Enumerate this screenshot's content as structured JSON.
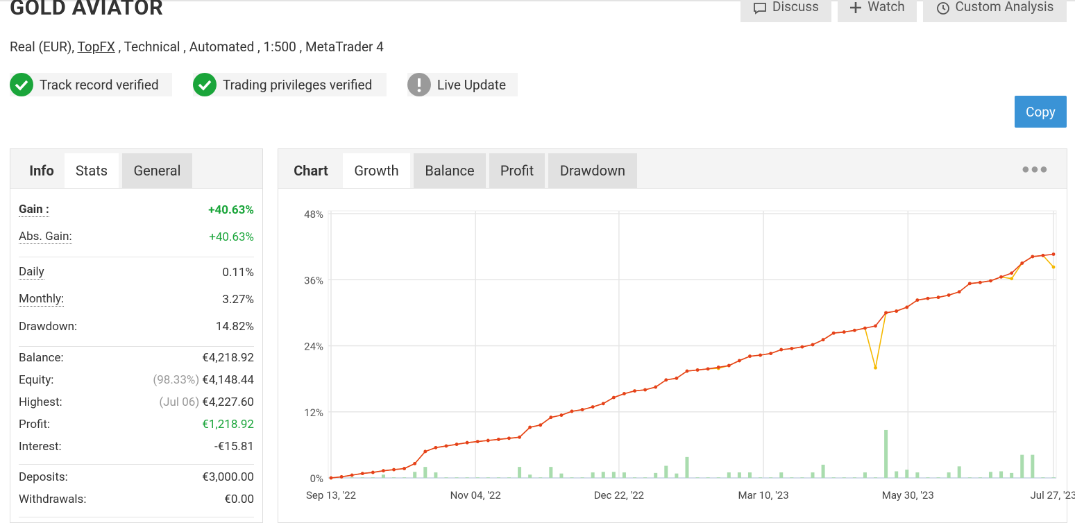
{
  "header": {
    "title": "GOLD AVIATOR",
    "account": "Real (EUR), ",
    "broker": "TopFX",
    "details": " , Technical , Automated , 1:500 , MetaTrader 4"
  },
  "buttons": [
    "Discuss",
    "Watch",
    "Custom Analysis"
  ],
  "badges": [
    "Track record verified",
    "Trading privileges verified",
    "Live Update"
  ],
  "copy": "Copy",
  "side_tabs": [
    "Info",
    "Stats",
    "General"
  ],
  "stats": [
    [
      {
        "label": "Gain :",
        "value": "+40.63%",
        "color": "#1aa53a"
      },
      {
        "label": "Abs. Gain:",
        "value": "+40.63%",
        "color": "#1aa53a"
      }
    ],
    [
      {
        "label": "Daily",
        "value": "0.11%"
      },
      {
        "label": "Monthly:",
        "value": "3.27%"
      },
      {
        "label": "Drawdown:",
        "value": "14.82%"
      }
    ],
    [
      {
        "label": "Balance:",
        "value": "€4,218.92"
      },
      {
        "label": "Equity:",
        "note": "(98.33%)",
        "value": "€4,148.44"
      },
      {
        "label": "Highest:",
        "note": "(Jul 06)",
        "value": "€4,227.60"
      },
      {
        "label": "Profit:",
        "value": "€1,218.92",
        "color": "#1aa53a"
      },
      {
        "label": "Interest:",
        "value": "-€15.81"
      }
    ],
    [
      {
        "label": "Deposits:",
        "value": "€3,000.00"
      },
      {
        "label": "Withdrawals:",
        "value": "€0.00"
      }
    ]
  ],
  "chart_tabs": [
    "Chart",
    "Growth",
    "Balance",
    "Profit",
    "Drawdown"
  ],
  "chart_data": {
    "type": "line",
    "categories": [
      null,
      null,
      null,
      null,
      null,
      null,
      null,
      null,
      null,
      null,
      null,
      null,
      null,
      null,
      null,
      null,
      null,
      null,
      null,
      null,
      null,
      null,
      null,
      null,
      null,
      null,
      null,
      null,
      null,
      null,
      null,
      null,
      null,
      null,
      null,
      null,
      null,
      null,
      null,
      null,
      null,
      null,
      null,
      null,
      null,
      null,
      null,
      null,
      null,
      null,
      null,
      null,
      null,
      null,
      null,
      null,
      null,
      null,
      null,
      null,
      null,
      null,
      null,
      null,
      null,
      null,
      null,
      null,
      null,
      null
    ],
    "xlim": [
      0,
      69
    ],
    "xticks": [
      {
        "value": 0,
        "label": "Sep 13, '22"
      },
      {
        "value": 13.8,
        "label": "Nov 04, '22"
      },
      {
        "value": 27.5,
        "label": "Dec 22, '22"
      },
      {
        "value": 41.3,
        "label": "Mar 10, '23"
      },
      {
        "value": 55.1,
        "label": "May 30, '23"
      },
      {
        "value": 69,
        "label": "Jul 27, '23"
      }
    ],
    "ylim": [
      0,
      48
    ],
    "yticks": [
      {
        "value": 0,
        "label": "0%"
      },
      {
        "value": 12,
        "label": "12%"
      },
      {
        "value": 24,
        "label": "24%"
      },
      {
        "value": 36,
        "label": "36%"
      },
      {
        "value": 48,
        "label": "48%"
      }
    ],
    "grid": true,
    "series": [
      {
        "type": "bar",
        "color": "#a9dcae",
        "values": [
          0.1,
          0.1,
          0.1,
          0.1,
          0.1,
          0.6,
          0.1,
          0.1,
          1.1,
          2.0,
          1.0,
          0.1,
          0.1,
          0.1,
          0.1,
          0.1,
          0.1,
          0.1,
          2.0,
          0.6,
          0.1,
          2.0,
          0.8,
          0.1,
          0.1,
          1.0,
          1.1,
          1.1,
          1.0,
          0.1,
          0.1,
          0.9,
          2.2,
          0.8,
          3.8,
          0.1,
          0.1,
          0.1,
          1.0,
          1.0,
          1.0,
          0.1,
          0.1,
          1.0,
          0.1,
          0.1,
          1.0,
          2.4,
          0.1,
          0.1,
          0.1,
          1.0,
          0.1,
          8.7,
          1.2,
          1.5,
          1.0,
          0.1,
          0.1,
          1.0,
          2.1,
          0.1,
          0.1,
          1.1,
          1.2,
          0.9,
          4.2,
          4.2,
          0.1,
          0.1
        ]
      },
      {
        "type": "line",
        "color": "#f5b800",
        "values": [
          0,
          0.2,
          0.5,
          0.8,
          1.0,
          1.3,
          1.5,
          1.7,
          2.6,
          4.8,
          5.5,
          5.8,
          6.1,
          6.4,
          6.6,
          6.8,
          7.0,
          7.2,
          7.4,
          9.2,
          9.6,
          11.0,
          11.4,
          12.1,
          12.4,
          12.9,
          13.5,
          14.6,
          15.3,
          15.8,
          16.0,
          16.5,
          17.8,
          18.1,
          19.4,
          19.6,
          19.8,
          19.9,
          20.4,
          21.3,
          22.1,
          22.3,
          22.6,
          23.3,
          23.5,
          23.8,
          24.2,
          25.1,
          26.3,
          26.5,
          26.8,
          27.2,
          20.0,
          30.0,
          30.3,
          31.0,
          32.3,
          32.6,
          32.8,
          33.2,
          33.8,
          35.3,
          35.5,
          35.8,
          36.5,
          36.2,
          39.0,
          40.2,
          40.4,
          38.3
        ]
      },
      {
        "type": "line",
        "color": "#e5401d",
        "values": [
          0,
          0.2,
          0.5,
          0.8,
          1.0,
          1.3,
          1.5,
          1.7,
          2.6,
          4.8,
          5.5,
          5.8,
          6.1,
          6.4,
          6.6,
          6.8,
          7.0,
          7.2,
          7.4,
          9.2,
          9.6,
          11.0,
          11.4,
          12.1,
          12.4,
          12.9,
          13.5,
          14.6,
          15.3,
          15.8,
          16.0,
          16.5,
          17.8,
          18.1,
          19.4,
          19.6,
          19.8,
          20.1,
          20.4,
          21.3,
          22.1,
          22.3,
          22.6,
          23.3,
          23.5,
          23.8,
          24.2,
          25.1,
          26.3,
          26.5,
          26.8,
          27.2,
          27.6,
          30.0,
          30.3,
          31.0,
          32.3,
          32.6,
          32.8,
          33.2,
          33.8,
          35.3,
          35.5,
          35.8,
          36.5,
          37.2,
          39.0,
          40.2,
          40.4,
          40.63
        ]
      }
    ]
  }
}
